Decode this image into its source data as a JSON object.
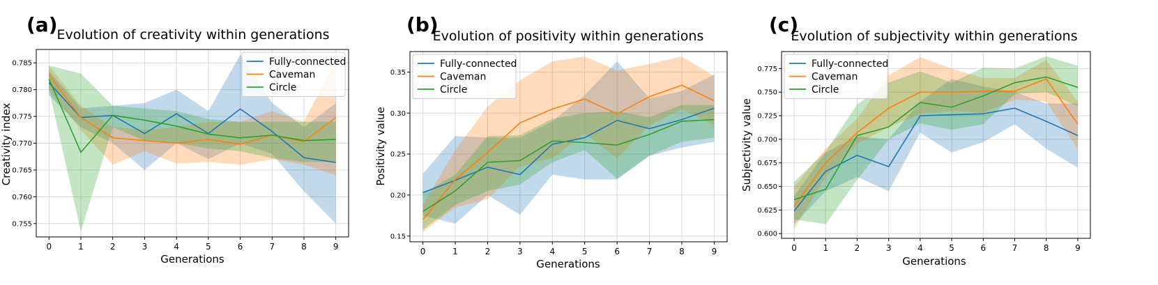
{
  "chart_data": [
    {
      "type": "line",
      "panel_letter": "(a)",
      "title": "Evolution of creativity within generations",
      "xlabel": "Generations",
      "ylabel": "Creativity index",
      "x": [
        0,
        1,
        2,
        3,
        4,
        5,
        6,
        7,
        8,
        9
      ],
      "xlim": [
        -0.4,
        9.4
      ],
      "ylim": [
        0.7525,
        0.7875
      ],
      "yticks": [
        0.755,
        0.76,
        0.765,
        0.77,
        0.775,
        0.78,
        0.785
      ],
      "ytick_labels": [
        "0.755",
        "0.760",
        "0.765",
        "0.770",
        "0.775",
        "0.780",
        "0.785"
      ],
      "grid": true,
      "legend_placement": "top-right",
      "series": [
        {
          "name": "Fully-connected",
          "color": "#1f77b4",
          "values": [
            0.7813,
            0.7748,
            0.7752,
            0.7718,
            0.7755,
            0.7718,
            0.7764,
            0.7722,
            0.7673,
            0.7664
          ],
          "lower": [
            0.779,
            0.773,
            0.77,
            0.765,
            0.77,
            0.767,
            0.77,
            0.768,
            0.761,
            0.755
          ],
          "upper": [
            0.7835,
            0.7765,
            0.777,
            0.7775,
            0.78,
            0.776,
            0.7865,
            0.7775,
            0.773,
            0.7775
          ]
        },
        {
          "name": "Caveman",
          "color": "#ff7f0e",
          "values": [
            0.7828,
            0.7748,
            0.771,
            0.7705,
            0.77,
            0.7707,
            0.7698,
            0.7715,
            0.7703,
            0.7748
          ],
          "lower": [
            0.78,
            0.7725,
            0.766,
            0.7685,
            0.7662,
            0.7665,
            0.766,
            0.767,
            0.766,
            0.764
          ],
          "upper": [
            0.7845,
            0.777,
            0.773,
            0.7725,
            0.773,
            0.774,
            0.774,
            0.776,
            0.774,
            0.7855
          ]
        },
        {
          "name": "Circle",
          "color": "#2ca02c",
          "values": [
            0.782,
            0.7683,
            0.7752,
            0.7743,
            0.7732,
            0.7717,
            0.771,
            0.7715,
            0.7705,
            0.7707
          ],
          "lower": [
            0.78,
            0.7535,
            0.773,
            0.7705,
            0.77,
            0.769,
            0.7685,
            0.7672,
            0.7665,
            0.7665
          ],
          "upper": [
            0.7845,
            0.783,
            0.777,
            0.7765,
            0.776,
            0.7745,
            0.774,
            0.774,
            0.774,
            0.774
          ]
        }
      ]
    },
    {
      "type": "line",
      "panel_letter": "(b)",
      "title": "Evolution of positivity within generations",
      "xlabel": "Generations",
      "ylabel": "Positivity value",
      "x": [
        0,
        1,
        2,
        3,
        4,
        5,
        6,
        7,
        8,
        9
      ],
      "xlim": [
        -0.4,
        9.4
      ],
      "ylim": [
        0.143,
        0.375
      ],
      "yticks": [
        0.15,
        0.2,
        0.25,
        0.3,
        0.35
      ],
      "ytick_labels": [
        "0.15",
        "0.20",
        "0.25",
        "0.30",
        "0.35"
      ],
      "grid": true,
      "legend_placement": "top-left",
      "series": [
        {
          "name": "Fully-connected",
          "color": "#1f77b4",
          "values": [
            0.203,
            0.218,
            0.234,
            0.225,
            0.262,
            0.27,
            0.291,
            0.281,
            0.292,
            0.306
          ],
          "lower": [
            0.175,
            0.165,
            0.2,
            0.176,
            0.225,
            0.219,
            0.219,
            0.248,
            0.258,
            0.265
          ],
          "upper": [
            0.226,
            0.272,
            0.27,
            0.27,
            0.29,
            0.322,
            0.363,
            0.318,
            0.327,
            0.347
          ]
        },
        {
          "name": "Caveman",
          "color": "#ff7f0e",
          "values": [
            0.17,
            0.219,
            0.252,
            0.288,
            0.305,
            0.317,
            0.299,
            0.32,
            0.334,
            0.315
          ],
          "lower": [
            0.155,
            0.185,
            0.195,
            0.235,
            0.245,
            0.275,
            0.245,
            0.285,
            0.305,
            0.285
          ],
          "upper": [
            0.188,
            0.255,
            0.308,
            0.34,
            0.363,
            0.369,
            0.352,
            0.36,
            0.369,
            0.345
          ]
        },
        {
          "name": "Circle",
          "color": "#2ca02c",
          "values": [
            0.18,
            0.205,
            0.24,
            0.242,
            0.266,
            0.264,
            0.261,
            0.274,
            0.29,
            0.292
          ],
          "lower": [
            0.158,
            0.188,
            0.205,
            0.213,
            0.24,
            0.255,
            0.22,
            0.248,
            0.265,
            0.27
          ],
          "upper": [
            0.202,
            0.225,
            0.272,
            0.273,
            0.293,
            0.3,
            0.302,
            0.295,
            0.31,
            0.31
          ]
        }
      ]
    },
    {
      "type": "line",
      "panel_letter": "(c)",
      "title": "Evolution of subjectivity within generations",
      "xlabel": "Generations",
      "ylabel": "Subjectivity value",
      "x": [
        0,
        1,
        2,
        3,
        4,
        5,
        6,
        7,
        8,
        9
      ],
      "xlim": [
        -0.4,
        9.4
      ],
      "ylim": [
        0.595,
        0.793
      ],
      "yticks": [
        0.6,
        0.625,
        0.65,
        0.675,
        0.7,
        0.725,
        0.75,
        0.775
      ],
      "ytick_labels": [
        "0.600",
        "0.625",
        "0.650",
        "0.675",
        "0.700",
        "0.725",
        "0.750",
        "0.775"
      ],
      "grid": true,
      "legend_placement": "top-left",
      "series": [
        {
          "name": "Fully-connected",
          "color": "#1f77b4",
          "values": [
            0.624,
            0.666,
            0.683,
            0.671,
            0.725,
            0.726,
            0.727,
            0.733,
            0.719,
            0.704
          ],
          "lower": [
            0.61,
            0.645,
            0.66,
            0.645,
            0.707,
            0.686,
            0.697,
            0.716,
            0.69,
            0.67
          ],
          "upper": [
            0.64,
            0.686,
            0.703,
            0.7,
            0.74,
            0.764,
            0.756,
            0.75,
            0.738,
            0.738
          ]
        },
        {
          "name": "Caveman",
          "color": "#ff7f0e",
          "values": [
            0.629,
            0.675,
            0.707,
            0.733,
            0.75,
            0.75,
            0.751,
            0.751,
            0.764,
            0.716
          ],
          "lower": [
            0.605,
            0.66,
            0.695,
            0.713,
            0.727,
            0.73,
            0.728,
            0.742,
            0.74,
            0.69
          ],
          "upper": [
            0.65,
            0.69,
            0.722,
            0.768,
            0.787,
            0.775,
            0.765,
            0.765,
            0.784,
            0.74
          ]
        },
        {
          "name": "Circle",
          "color": "#2ca02c",
          "values": [
            0.636,
            0.647,
            0.704,
            0.713,
            0.739,
            0.734,
            0.746,
            0.76,
            0.766,
            0.755
          ],
          "lower": [
            0.615,
            0.61,
            0.657,
            0.7,
            0.717,
            0.71,
            0.716,
            0.748,
            0.75,
            0.735
          ],
          "upper": [
            0.655,
            0.687,
            0.737,
            0.76,
            0.772,
            0.76,
            0.776,
            0.775,
            0.788,
            0.778
          ]
        }
      ]
    }
  ]
}
